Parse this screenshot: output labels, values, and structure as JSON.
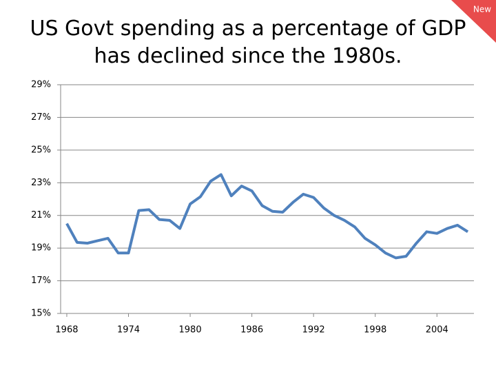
{
  "badge": "New",
  "chart_data": {
    "type": "line",
    "title": "US Govt spending as a percentage of GDP has declined since the 1980s.",
    "x": [
      1968,
      1969,
      1970,
      1971,
      1972,
      1973,
      1974,
      1975,
      1976,
      1977,
      1978,
      1979,
      1980,
      1981,
      1982,
      1983,
      1984,
      1985,
      1986,
      1987,
      1988,
      1989,
      1990,
      1991,
      1992,
      1993,
      1994,
      1995,
      1996,
      1997,
      1998,
      1999,
      2000,
      2001,
      2002,
      2003,
      2004,
      2005,
      2006,
      2007
    ],
    "series": [
      {
        "color": "#4f81bd",
        "values": [
          20.5,
          19.35,
          19.3,
          19.45,
          19.6,
          18.7,
          18.7,
          21.3,
          21.35,
          20.75,
          20.7,
          20.2,
          21.7,
          22.15,
          23.1,
          23.5,
          22.2,
          22.8,
          22.5,
          21.6,
          21.25,
          21.2,
          21.8,
          22.3,
          22.1,
          21.45,
          21.0,
          20.7,
          20.3,
          19.6,
          19.2,
          18.7,
          18.4,
          18.5,
          19.3,
          20.0,
          19.9,
          20.2,
          20.4,
          20.0
        ]
      }
    ],
    "xlim": [
      1967.4,
      2007.6
    ],
    "xticks": [
      1968,
      1974,
      1980,
      1986,
      1992,
      1998,
      2004
    ],
    "ylim": [
      15,
      29
    ],
    "yticks": [
      {
        "value": 15,
        "label": "15%"
      },
      {
        "value": 17,
        "label": "17%"
      },
      {
        "value": 19,
        "label": "19%"
      },
      {
        "value": 21,
        "label": "21%"
      },
      {
        "value": 23,
        "label": "23%"
      },
      {
        "value": 25,
        "label": "25%"
      },
      {
        "value": 27,
        "label": "27%"
      },
      {
        "value": 29,
        "label": "29%"
      }
    ],
    "grid": true
  }
}
